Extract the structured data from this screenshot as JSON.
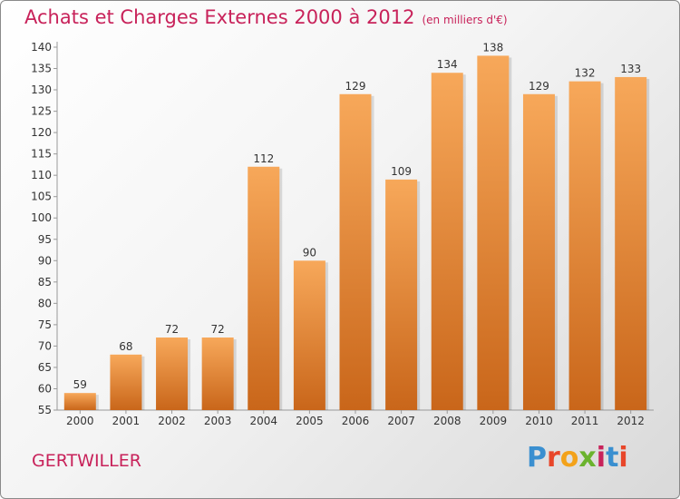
{
  "header": {
    "title": "Achats et Charges Externes 2000 à 2012",
    "unit": "(en milliers d'€)"
  },
  "footer": {
    "town": "GERTWILLER",
    "logo_text": "Proxiti"
  },
  "colors": {
    "title": "#c8225a",
    "bar_top": "#f7a85a",
    "bar_bottom": "#c9661a",
    "axis": "#999999"
  },
  "chart_data": {
    "type": "bar",
    "title": "Achats et Charges Externes 2000 à 2012",
    "subtitle": "(en milliers d'€)",
    "xlabel": "",
    "ylabel": "",
    "categories": [
      "2000",
      "2001",
      "2002",
      "2003",
      "2004",
      "2005",
      "2006",
      "2007",
      "2008",
      "2009",
      "2010",
      "2011",
      "2012"
    ],
    "values": [
      59,
      68,
      72,
      72,
      112,
      90,
      129,
      109,
      134,
      138,
      129,
      132,
      133
    ],
    "ylim": [
      55,
      140
    ],
    "yticks": [
      55,
      60,
      65,
      70,
      75,
      80,
      85,
      90,
      95,
      100,
      105,
      110,
      115,
      120,
      125,
      130,
      135,
      140
    ],
    "grid": false,
    "data_labels": true
  }
}
